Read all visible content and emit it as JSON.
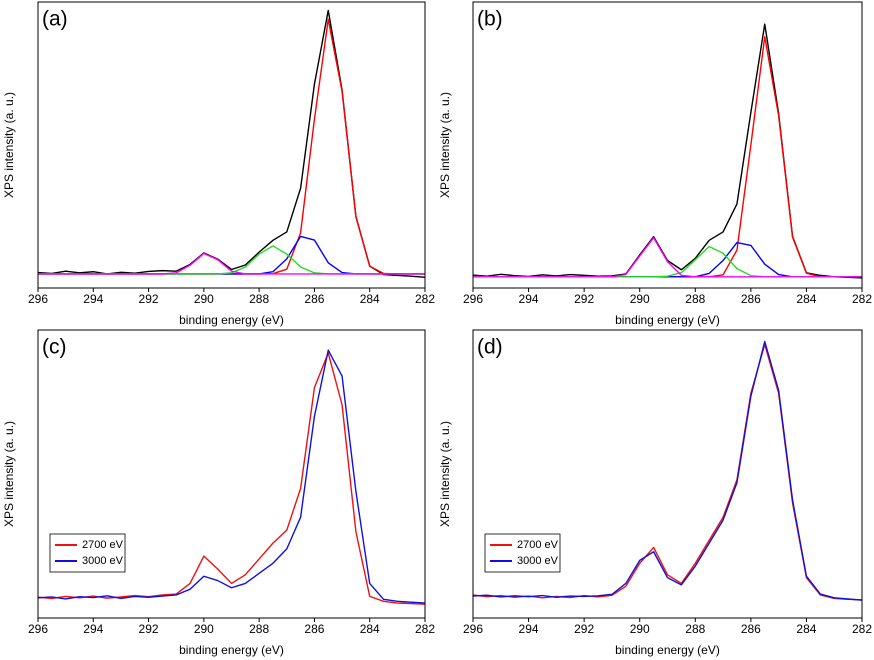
{
  "chart_data": [
    {
      "type": "line",
      "label": "(a)",
      "xlabel": "binding energy (eV)",
      "ylabel": "XPS intensity (a. u.)",
      "x": [
        296,
        295.5,
        295,
        294.5,
        294,
        293.5,
        293,
        292.5,
        292,
        291.5,
        291,
        290.5,
        290,
        289.5,
        289,
        288.5,
        288,
        287.5,
        287,
        286.5,
        286,
        285.5,
        285,
        284.5,
        284,
        283.5,
        283,
        282.5,
        282
      ],
      "xlim": [
        296,
        282
      ],
      "xticks": [
        296,
        294,
        292,
        290,
        288,
        286,
        284,
        282
      ],
      "ylim": [
        0,
        102
      ],
      "series": [
        {
          "color": "#000000",
          "values": [
            5.5,
            5.2,
            6,
            5.4,
            5.8,
            5,
            5.6,
            5.3,
            5.9,
            6.2,
            6,
            8.4,
            12.5,
            10.3,
            6.6,
            8.2,
            12.8,
            17,
            20,
            35.6,
            72.7,
            99,
            70.6,
            25.5,
            7.8,
            4.8,
            4.5,
            4.2,
            3.8
          ]
        },
        {
          "color": "#ff0000",
          "values": [
            5,
            5,
            5,
            5,
            5,
            5,
            5,
            5,
            5,
            5,
            5,
            5,
            5,
            5,
            5,
            5,
            5,
            5.1,
            6.7,
            19.7,
            60.2,
            95.8,
            70.1,
            25.5,
            7.8,
            5.2,
            5,
            5,
            5
          ]
        },
        {
          "color": "#0000ff",
          "values": [
            5,
            5,
            5,
            5,
            5,
            5,
            5,
            5,
            5,
            5,
            5,
            5,
            5,
            5,
            5,
            5,
            5,
            5.8,
            10.4,
            18.4,
            17.1,
            9,
            5.5,
            5,
            5,
            5,
            5,
            5,
            5
          ]
        },
        {
          "color": "#22dd22",
          "values": [
            5,
            5,
            5,
            5,
            5,
            5,
            5,
            5,
            5,
            5,
            5,
            5,
            5,
            5,
            5.4,
            7.5,
            12.1,
            15,
            12.1,
            7.5,
            5.4,
            5,
            5,
            5,
            5,
            5,
            5,
            5,
            5
          ]
        },
        {
          "color": "#ff00ff",
          "values": [
            5,
            5,
            5,
            5,
            5,
            5,
            5,
            5,
            5,
            5,
            5.4,
            8.1,
            12.3,
            10.1,
            6,
            5,
            5,
            5,
            5,
            5,
            5,
            5,
            5,
            5,
            5,
            5,
            5,
            5,
            5
          ]
        }
      ]
    },
    {
      "type": "line",
      "label": "(b)",
      "xlabel": "binding energy (eV)",
      "ylabel": "XPS intensity (a. u.)",
      "x": [
        296,
        295.5,
        295,
        294.5,
        294,
        293.5,
        293,
        292.5,
        292,
        291.5,
        291,
        290.5,
        290,
        289.5,
        289,
        288.5,
        288,
        287.5,
        287,
        286.5,
        286,
        285.5,
        285,
        284.5,
        284,
        283.5,
        283,
        282.5,
        282
      ],
      "xlim": [
        296,
        282
      ],
      "xticks": [
        296,
        294,
        292,
        290,
        288,
        286,
        284,
        282
      ],
      "ylim": [
        0,
        102
      ],
      "series": [
        {
          "color": "#000000",
          "values": [
            4.6,
            4.2,
            4.9,
            4.4,
            4.1,
            4.7,
            4.3,
            4.8,
            4.5,
            4.2,
            4.3,
            5,
            11.8,
            18.3,
            9.8,
            6.5,
            10.6,
            17,
            20,
            30,
            62.6,
            94.1,
            62.2,
            18.4,
            5.4,
            4.5,
            4,
            3.8,
            3.6
          ]
        },
        {
          "color": "#ff0000",
          "values": [
            4,
            4,
            4,
            4,
            4,
            4,
            4,
            4,
            4,
            4,
            4,
            4,
            4,
            4,
            4,
            4,
            4,
            4,
            4.7,
            13.5,
            51,
            89.6,
            61.4,
            18.2,
            5.3,
            4,
            4,
            4,
            4
          ]
        },
        {
          "color": "#0000ff",
          "values": [
            4,
            4,
            4,
            4,
            4,
            4,
            4,
            4,
            4,
            4,
            4,
            4,
            4,
            4,
            4,
            4,
            4,
            5.2,
            9.8,
            16.2,
            15.2,
            8.5,
            4.8,
            4,
            4,
            4,
            4,
            4,
            4
          ]
        },
        {
          "color": "#22dd22",
          "values": [
            4,
            4,
            4,
            4,
            4,
            4,
            4,
            4,
            4,
            4,
            4,
            4,
            4,
            4,
            4.2,
            5.5,
            10.1,
            14.8,
            12.4,
            6.9,
            4.4,
            4,
            4,
            4,
            4,
            4,
            4,
            4,
            4
          ]
        },
        {
          "color": "#ff00ff",
          "values": [
            4,
            4,
            4,
            4,
            4,
            4,
            4,
            4,
            4,
            4,
            4,
            4.8,
            11.4,
            17.9,
            9.4,
            4.5,
            4,
            4,
            4,
            4,
            4,
            4,
            4,
            4,
            4,
            4,
            4,
            4,
            4
          ]
        }
      ]
    },
    {
      "type": "line",
      "label": "(c)",
      "xlabel": "binding energy (eV)",
      "ylabel": "XPS intensity (a. u.)",
      "x": [
        296,
        295.5,
        295,
        294.5,
        294,
        293.5,
        293,
        292.5,
        292,
        291.5,
        291,
        290.5,
        290,
        289.5,
        289,
        288.5,
        288,
        287.5,
        287,
        286.5,
        286,
        285.5,
        285,
        284.5,
        284,
        283.5,
        283,
        282.5,
        282
      ],
      "xlim": [
        296,
        282
      ],
      "xticks": [
        296,
        294,
        292,
        290,
        288,
        286,
        284,
        282
      ],
      "ylim": [
        0,
        100
      ],
      "legend": "lower left",
      "series": [
        {
          "name": "2700 eV",
          "color": "#ee1111",
          "values": [
            7.2,
            6.8,
            7.5,
            7,
            7.6,
            6.9,
            7.3,
            7.8,
            7.4,
            8,
            8.3,
            12,
            21.5,
            17,
            12,
            15,
            20.5,
            26,
            30.5,
            45,
            80,
            92,
            74,
            30,
            7.5,
            5.8,
            5.2,
            5,
            4.8
          ]
        },
        {
          "name": "3000 eV",
          "color": "#1010dd",
          "values": [
            7,
            7.3,
            6.6,
            7.4,
            7.1,
            7.7,
            6.8,
            7.5,
            7.2,
            7.6,
            8,
            10,
            14.5,
            13,
            10.5,
            12,
            15.5,
            19,
            24,
            35,
            70,
            93,
            84,
            44,
            12,
            6.5,
            5.8,
            5.5,
            5.2
          ]
        }
      ]
    },
    {
      "type": "line",
      "label": "(d)",
      "xlabel": "binding energy (eV)",
      "ylabel": "XPS intensity (a. u.)",
      "x": [
        296,
        295.5,
        295,
        294.5,
        294,
        293.5,
        293,
        292.5,
        292,
        291.5,
        291,
        290.5,
        290,
        289.5,
        289,
        288.5,
        288,
        287.5,
        287,
        286.5,
        286,
        285.5,
        285,
        284.5,
        284,
        283.5,
        283,
        282.5,
        282
      ],
      "xlim": [
        296,
        282
      ],
      "xticks": [
        296,
        294,
        292,
        290,
        288,
        286,
        284,
        282
      ],
      "ylim": [
        0,
        100
      ],
      "legend": "lower left",
      "series": [
        {
          "name": "2700 eV",
          "color": "#ee1111",
          "values": [
            8,
            7.4,
            7.8,
            7.2,
            7.6,
            7,
            7.5,
            7.1,
            7.8,
            7.3,
            7.9,
            11,
            19,
            24.5,
            15,
            12,
            19,
            27,
            35,
            48,
            78,
            95,
            78,
            40,
            14,
            8,
            6.8,
            6.5,
            6.3
          ]
        },
        {
          "name": "3000 eV",
          "color": "#1010dd",
          "values": [
            7.6,
            7.9,
            7.3,
            7.7,
            7.4,
            7.8,
            7.2,
            7.6,
            7.5,
            7.7,
            8.2,
            12,
            20,
            23,
            14,
            11.5,
            18,
            26,
            34,
            47,
            77,
            96,
            79,
            41,
            14.5,
            8.3,
            7,
            6.6,
            6.2
          ]
        }
      ]
    }
  ]
}
